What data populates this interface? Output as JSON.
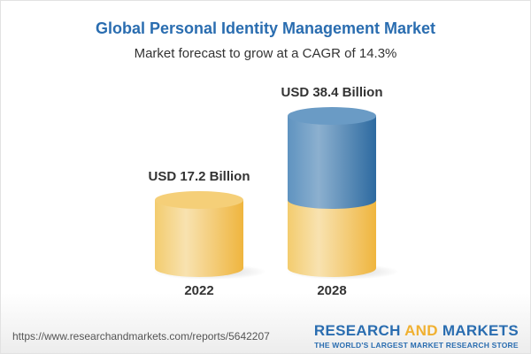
{
  "title": "Global Personal Identity Management Market",
  "subtitle": "Market forecast to grow at a CAGR of 14.3%",
  "chart_data": {
    "type": "bar",
    "style": "3d-cylinder",
    "categories": [
      "2022",
      "2028"
    ],
    "values": [
      17.2,
      38.4
    ],
    "data_labels": [
      "USD 17.2 Billion",
      "USD 38.4 Billion"
    ],
    "unit": "USD Billion",
    "colors": {
      "base": "#f2c55c",
      "growth": "#3f7bb0"
    }
  },
  "footer": {
    "url": "https://www.researchandmarkets.com/reports/5642207",
    "logo_part1": "RESEARCH ",
    "logo_part2": "AND",
    "logo_part3": " MARKETS",
    "tagline": "THE WORLD'S LARGEST MARKET RESEARCH STORE"
  }
}
